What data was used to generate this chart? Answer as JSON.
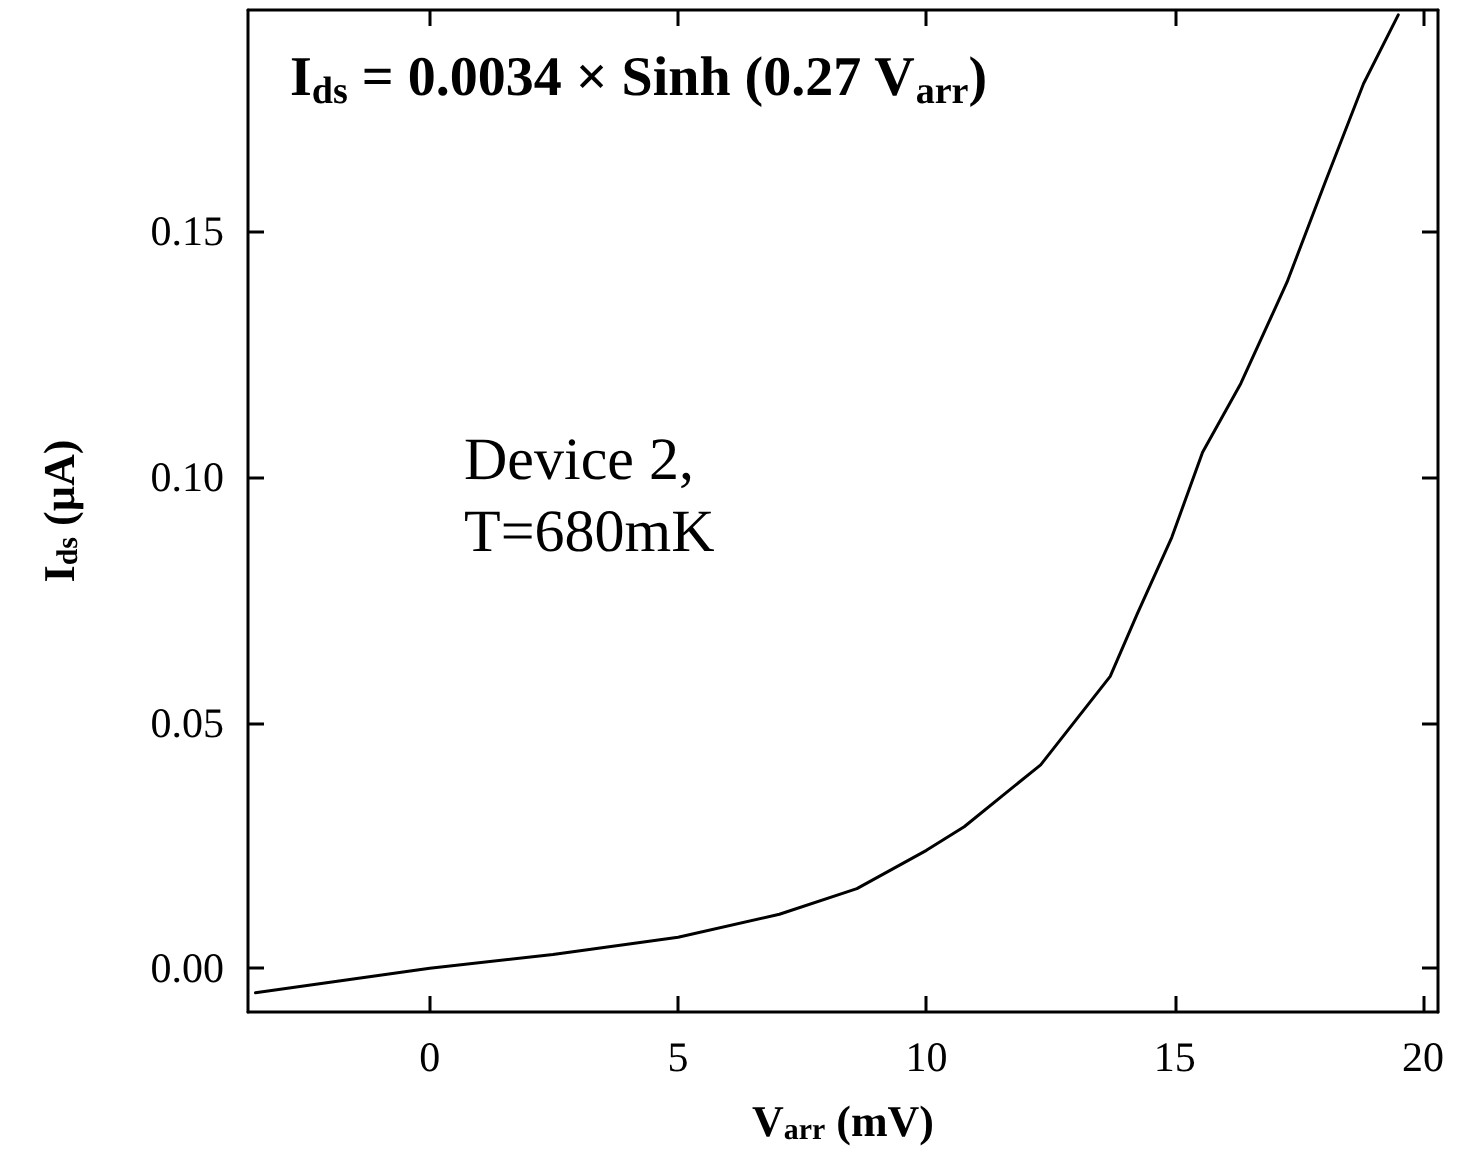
{
  "chart_data": {
    "type": "line",
    "xlabel": "V$_{arr}$ (mV)",
    "ylabel": "I$_{ds}$ (µA)",
    "annotations": [
      "I$_{ds}$ = 0.0034 × Sinh (0.27 V$_{arr}$)",
      "Device 2,\nT=680mK"
    ],
    "x": [
      -3.51,
      0,
      2.48,
      5,
      7.04,
      8.6,
      10,
      10.76,
      12.3,
      13.7,
      14.24,
      14.94,
      15.56,
      16.33,
      17.26,
      18.03,
      18.8,
      19.5
    ],
    "series": [
      {
        "color": "#000000",
        "values": [
          -0.005,
          0,
          0.0028,
          0.0063,
          0.011,
          0.0162,
          0.024,
          0.0288,
          0.0414,
          0.0594,
          0.072,
          0.0877,
          0.105,
          0.119,
          0.1396,
          0.16,
          0.18,
          0.194
        ]
      }
    ],
    "xlim": [
      -3.66,
      20.3
    ],
    "xticks": [
      0,
      5,
      10,
      15,
      20
    ],
    "ylim": [
      -0.0089,
      0.195
    ],
    "yticks": [
      {
        "value": 0,
        "label": "0.00"
      },
      {
        "value": 0.05,
        "label": "0.05"
      },
      {
        "value": 0.1,
        "label": "0.10"
      },
      {
        "value": 0.15,
        "label": "0.15"
      }
    ],
    "grid": false,
    "marker": "none",
    "line_style": "solid"
  }
}
